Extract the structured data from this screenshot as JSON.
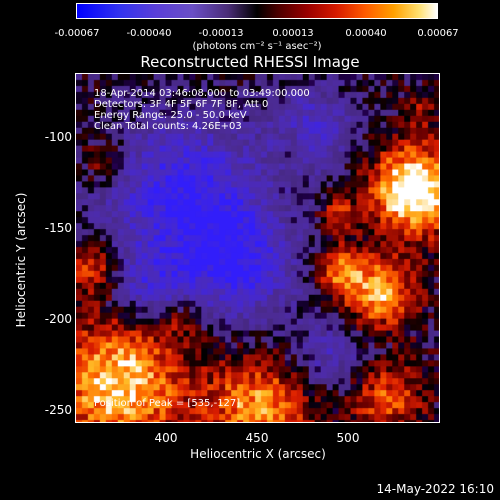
{
  "colorbar": {
    "tick_labels": [
      "-0.00067",
      "-0.00040",
      "-0.00013",
      "0.00013",
      "0.00040",
      "0.00067"
    ],
    "units_label": "(photons cm⁻² s⁻¹ asec⁻²)"
  },
  "title": "Reconstructed RHESSI Image",
  "info": {
    "time_range": "18-Apr-2014 03:46:08.000 to 03:49:00.000",
    "detectors": "Detectors: 3F 4F 5F 6F 7F 8F, Att 0",
    "energy_range": "Energy Range: 25.0 - 50.0 keV",
    "clean_counts": "Clean     Total counts: 4.26E+03"
  },
  "peak_label": "Position of Peak = [535,-127]",
  "chart_data": {
    "type": "heatmap",
    "xlabel": "Heliocentric X (arcsec)",
    "ylabel": "Heliocentric Y (arcsec)",
    "x_ticks": [
      "400",
      "450",
      "500"
    ],
    "y_ticks": [
      "-100",
      "-150",
      "-200",
      "-250"
    ],
    "xlim": [
      355,
      540
    ],
    "ylim": [
      -257,
      -78
    ],
    "peak": [
      535,
      -127
    ]
  },
  "footer_date": "14-May-2022 16:10"
}
